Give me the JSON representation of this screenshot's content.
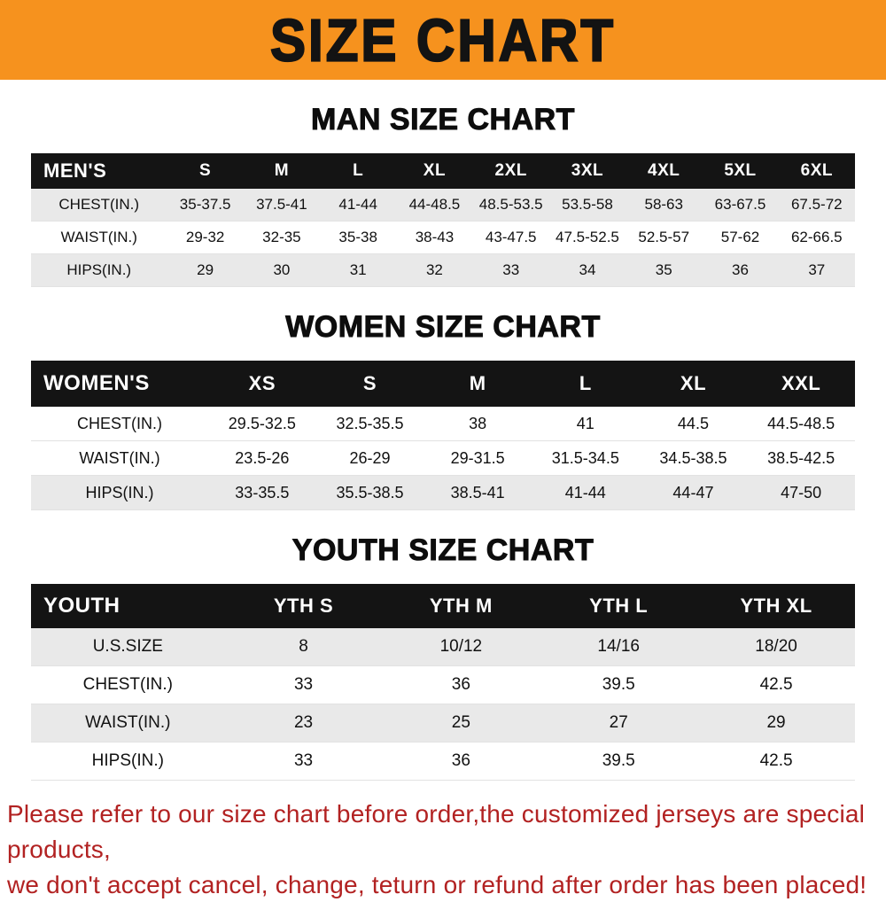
{
  "colors": {
    "banner_bg": "#f6921e",
    "table_header_bg": "#141414",
    "row_stripe": "#e9e9e9",
    "footer_text": "#b22222"
  },
  "banner": {
    "title": "SIZE CHART"
  },
  "sections": [
    {
      "heading": "MAN SIZE CHART",
      "table": {
        "header": [
          "MEN'S",
          "S",
          "M",
          "L",
          "XL",
          "2XL",
          "3XL",
          "4XL",
          "5XL",
          "6XL"
        ],
        "rows": [
          [
            "CHEST(IN.)",
            "35-37.5",
            "37.5-41",
            "41-44",
            "44-48.5",
            "48.5-53.5",
            "53.5-58",
            "58-63",
            "63-67.5",
            "67.5-72"
          ],
          [
            "WAIST(IN.)",
            "29-32",
            "32-35",
            "35-38",
            "38-43",
            "43-47.5",
            "47.5-52.5",
            "52.5-57",
            "57-62",
            "62-66.5"
          ],
          [
            "HIPS(IN.)",
            "29",
            "30",
            "31",
            "32",
            "33",
            "34",
            "35",
            "36",
            "37"
          ]
        ]
      }
    },
    {
      "heading": "WOMEN SIZE CHART",
      "table": {
        "header": [
          "WOMEN'S",
          "XS",
          "S",
          "M",
          "L",
          "XL",
          "XXL"
        ],
        "rows": [
          [
            "CHEST(IN.)",
            "29.5-32.5",
            "32.5-35.5",
            "38",
            "41",
            "44.5",
            "44.5-48.5"
          ],
          [
            "WAIST(IN.)",
            "23.5-26",
            "26-29",
            "29-31.5",
            "31.5-34.5",
            "34.5-38.5",
            "38.5-42.5"
          ],
          [
            "HIPS(IN.)",
            "33-35.5",
            "35.5-38.5",
            "38.5-41",
            "41-44",
            "44-47",
            "47-50"
          ]
        ]
      }
    },
    {
      "heading": "YOUTH SIZE CHART",
      "table": {
        "header": [
          "YOUTH",
          "YTH S",
          "YTH M",
          "YTH L",
          "YTH XL"
        ],
        "rows": [
          [
            "U.S.SIZE",
            "8",
            "10/12",
            "14/16",
            "18/20"
          ],
          [
            "CHEST(IN.)",
            "33",
            "36",
            "39.5",
            "42.5"
          ],
          [
            "WAIST(IN.)",
            "23",
            "25",
            "27",
            "29"
          ],
          [
            "HIPS(IN.)",
            "33",
            "36",
            "39.5",
            "42.5"
          ]
        ]
      }
    }
  ],
  "footer": {
    "line1": "Please refer to our size chart before order,the customized jerseys are special products,",
    "line2": "we don't accept cancel, change, teturn or refund after order has been placed!"
  }
}
